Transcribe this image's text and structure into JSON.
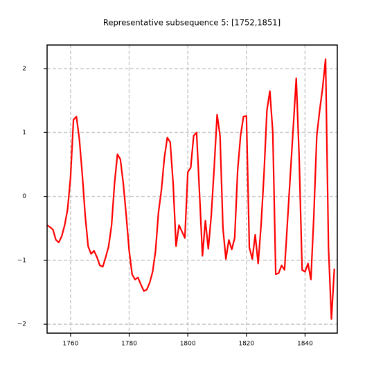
{
  "chart_data": {
    "type": "line",
    "title": "Representative subsequence 5: [1752,1851]",
    "x": [
      1752,
      1753,
      1754,
      1755,
      1756,
      1757,
      1758,
      1759,
      1760,
      1761,
      1762,
      1763,
      1764,
      1765,
      1766,
      1767,
      1768,
      1769,
      1770,
      1771,
      1772,
      1773,
      1774,
      1775,
      1776,
      1777,
      1778,
      1779,
      1780,
      1781,
      1782,
      1783,
      1784,
      1785,
      1786,
      1787,
      1788,
      1789,
      1790,
      1791,
      1792,
      1793,
      1794,
      1795,
      1796,
      1797,
      1798,
      1799,
      1800,
      1801,
      1802,
      1803,
      1804,
      1805,
      1806,
      1807,
      1808,
      1809,
      1810,
      1811,
      1812,
      1813,
      1814,
      1815,
      1816,
      1817,
      1818,
      1819,
      1820,
      1821,
      1822,
      1823,
      1824,
      1825,
      1826,
      1827,
      1828,
      1829,
      1830,
      1831,
      1832,
      1833,
      1834,
      1835,
      1836,
      1837,
      1838,
      1839,
      1840,
      1841,
      1842,
      1843,
      1844,
      1845,
      1846,
      1847,
      1848,
      1849,
      1850
    ],
    "series": [
      {
        "color": "#ff0000",
        "values": [
          -0.45,
          -0.48,
          -0.52,
          -0.68,
          -0.72,
          -0.62,
          -0.45,
          -0.2,
          0.3,
          1.2,
          1.25,
          0.9,
          0.35,
          -0.3,
          -0.78,
          -0.9,
          -0.85,
          -0.95,
          -1.08,
          -1.1,
          -0.95,
          -0.78,
          -0.45,
          0.2,
          0.66,
          0.58,
          0.2,
          -0.3,
          -0.85,
          -1.22,
          -1.3,
          -1.27,
          -1.38,
          -1.48,
          -1.46,
          -1.35,
          -1.18,
          -0.85,
          -0.25,
          0.1,
          0.6,
          0.92,
          0.85,
          0.2,
          -0.78,
          -0.45,
          -0.55,
          -0.65,
          0.38,
          0.45,
          0.95,
          1.0,
          0.05,
          -0.93,
          -0.38,
          -0.82,
          -0.3,
          0.45,
          1.28,
          0.95,
          -0.5,
          -0.98,
          -0.68,
          -0.83,
          -0.65,
          0.4,
          0.95,
          1.25,
          1.26,
          -0.8,
          -0.98,
          -0.6,
          -1.05,
          -0.45,
          0.35,
          1.35,
          1.65,
          1.0,
          -1.22,
          -1.2,
          -1.08,
          -1.15,
          -0.4,
          0.35,
          1.1,
          1.85,
          0.6,
          -1.15,
          -1.18,
          -1.05,
          -1.3,
          -0.3,
          0.95,
          1.35,
          1.7,
          2.15,
          -0.8,
          -1.92,
          -1.13
        ]
      }
    ],
    "xlim": [
      1752,
      1851
    ],
    "xticks": [
      1760,
      1780,
      1800,
      1820,
      1840
    ],
    "ylim": [
      -2.14,
      2.37
    ],
    "yticks": [
      {
        "value": -2,
        "label": "−2"
      },
      {
        "value": -1,
        "label": "−1"
      },
      0,
      1,
      2
    ],
    "grid": true
  }
}
